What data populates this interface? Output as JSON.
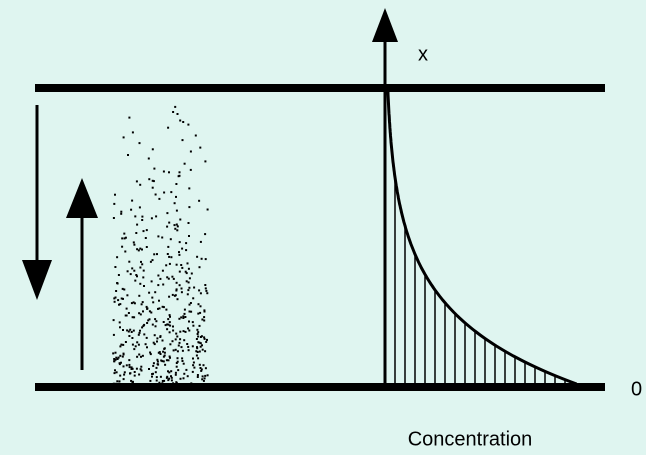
{
  "labels": {
    "height_axis": "x",
    "origin": "0",
    "concentration_axis": "Concentration"
  }
}
